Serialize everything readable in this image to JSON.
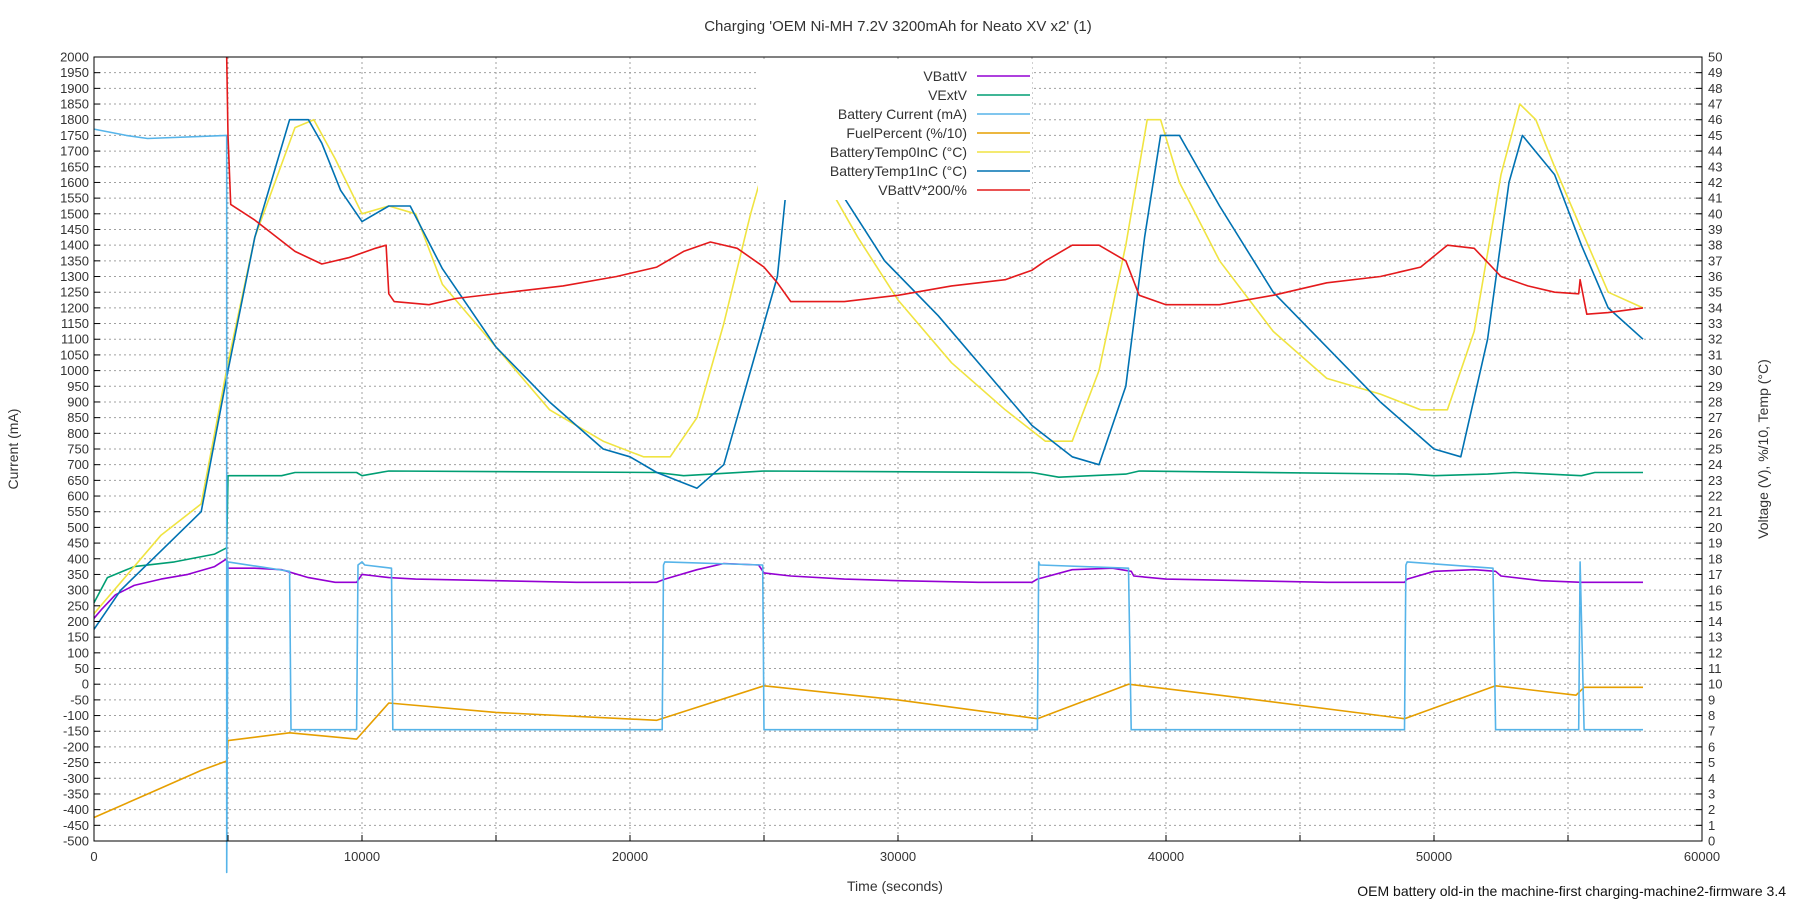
{
  "chart_data": {
    "type": "line",
    "title": "Charging 'OEM Ni-MH 7.2V 3200mAh for Neato XV x2' (1)",
    "xlabel": "Time (seconds)",
    "ylabel": "Current (mA)",
    "y2label": "Voltage (V), %/10, Temp (°C)",
    "footer": "OEM battery old-in the machine-first charging-machine2-firmware 3.4",
    "xlim": [
      0,
      60000
    ],
    "ylim": [
      -500,
      2000
    ],
    "y2lim": [
      0,
      50
    ],
    "x_ticks": [
      0,
      10000,
      20000,
      30000,
      40000,
      50000,
      60000
    ],
    "y_ticks": [
      -500,
      -450,
      -400,
      -350,
      -300,
      -250,
      -200,
      -150,
      -100,
      -50,
      0,
      50,
      100,
      150,
      200,
      250,
      300,
      350,
      400,
      450,
      500,
      550,
      600,
      650,
      700,
      750,
      800,
      850,
      900,
      950,
      1000,
      1050,
      1100,
      1150,
      1200,
      1250,
      1300,
      1350,
      1400,
      1450,
      1500,
      1550,
      1600,
      1650,
      1700,
      1750,
      1800,
      1850,
      1900,
      1950,
      2000
    ],
    "y2_ticks": [
      0,
      1,
      2,
      3,
      4,
      5,
      6,
      7,
      8,
      9,
      10,
      11,
      12,
      13,
      14,
      15,
      16,
      17,
      18,
      19,
      20,
      21,
      22,
      23,
      24,
      25,
      26,
      27,
      28,
      29,
      30,
      31,
      32,
      33,
      34,
      35,
      36,
      37,
      38,
      39,
      40,
      41,
      42,
      43,
      44,
      45,
      46,
      47,
      48,
      49,
      50
    ],
    "grid": true,
    "legend_position": "top-center",
    "series": [
      {
        "name": "VBattV",
        "axis": "y2",
        "color": "#9400d3",
        "x": [
          0,
          300,
          800,
          1500,
          2500,
          3500,
          4500,
          4950,
          5000,
          6000,
          7000,
          8000,
          9000,
          9800,
          10000,
          10500,
          11000,
          12000,
          15000,
          18000,
          21000,
          21300,
          22500,
          23500,
          24800,
          25000,
          26000,
          28000,
          30000,
          33000,
          35000,
          35200,
          36500,
          38000,
          38700,
          38800,
          40000,
          43000,
          46000,
          48900,
          49000,
          50000,
          51500,
          52300,
          52500,
          54000,
          55500,
          56000,
          57800
        ],
        "y": [
          14.2,
          14.8,
          15.7,
          16.3,
          16.7,
          17.0,
          17.5,
          18.0,
          17.4,
          17.4,
          17.3,
          16.8,
          16.5,
          16.5,
          17.0,
          16.9,
          16.8,
          16.7,
          16.6,
          16.5,
          16.5,
          16.7,
          17.3,
          17.7,
          17.6,
          17.1,
          16.9,
          16.7,
          16.6,
          16.5,
          16.5,
          16.7,
          17.3,
          17.4,
          17.2,
          16.9,
          16.7,
          16.6,
          16.5,
          16.5,
          16.7,
          17.2,
          17.3,
          17.2,
          16.9,
          16.6,
          16.5,
          16.5,
          16.5
        ]
      },
      {
        "name": "VExtV",
        "axis": "y2",
        "color": "#009e73",
        "x": [
          0,
          500,
          1500,
          3000,
          4500,
          4950,
          5000,
          7000,
          7500,
          9800,
          10000,
          11000,
          21000,
          22000,
          25000,
          35000,
          36000,
          38500,
          39000,
          49000,
          50000,
          52000,
          53000,
          55500,
          56000,
          57800
        ],
        "y": [
          15.2,
          16.8,
          17.5,
          17.8,
          18.3,
          18.7,
          23.3,
          23.3,
          23.5,
          23.5,
          23.3,
          23.6,
          23.5,
          23.3,
          23.6,
          23.5,
          23.2,
          23.4,
          23.6,
          23.4,
          23.3,
          23.4,
          23.5,
          23.3,
          23.5,
          23.5
        ]
      },
      {
        "name": "Battery Current (mA)",
        "axis": "y",
        "color": "#56b4e9",
        "x": [
          0,
          1200,
          2000,
          4950,
          4951,
          5000,
          7300,
          7350,
          9800,
          9850,
          10000,
          10100,
          11100,
          11150,
          21200,
          21250,
          21300,
          24950,
          25000,
          35200,
          35250,
          35300,
          38600,
          38700,
          48900,
          48950,
          49000,
          52200,
          52300,
          55400,
          55450,
          55600,
          55700,
          57800
        ],
        "y": [
          1770,
          1750,
          1740,
          1750,
          -600,
          390,
          360,
          -145,
          -145,
          380,
          390,
          380,
          370,
          -145,
          -145,
          380,
          390,
          380,
          -145,
          -145,
          390,
          380,
          370,
          -145,
          -145,
          380,
          390,
          370,
          -145,
          -145,
          390,
          -145,
          -145,
          -145
        ]
      },
      {
        "name": "FuelPercent (%/10)",
        "axis": "y2",
        "color": "#e69f00",
        "x": [
          0,
          2000,
          4000,
          4950,
          5000,
          7300,
          9800,
          11000,
          15000,
          21000,
          25000,
          30000,
          35200,
          38600,
          42000,
          48900,
          52300,
          55300,
          55600,
          57800
        ],
        "y": [
          1.5,
          3.0,
          4.5,
          5.1,
          6.4,
          6.9,
          6.5,
          8.8,
          8.2,
          7.7,
          9.9,
          9.0,
          7.8,
          10.0,
          9.3,
          7.8,
          9.9,
          9.3,
          9.8,
          9.8
        ]
      },
      {
        "name": "BatteryTemp0InC (°C)",
        "axis": "y2",
        "color": "#f0e442",
        "x": [
          0,
          1000,
          2500,
          4000,
          5000,
          6000,
          7500,
          8200,
          9000,
          10000,
          11000,
          12000,
          13000,
          15000,
          17000,
          19000,
          20500,
          21500,
          22500,
          23500,
          24500,
          25500,
          26200,
          27000,
          28500,
          30000,
          32000,
          34000,
          35500,
          36500,
          37500,
          38500,
          39300,
          39800,
          40500,
          42000,
          44000,
          46000,
          48000,
          49500,
          50500,
          51500,
          52500,
          53200,
          53800,
          54500,
          55500,
          56500,
          57800
        ],
        "y": [
          14.5,
          16.5,
          19.5,
          21.5,
          30.5,
          38.5,
          45.5,
          46,
          43.5,
          40,
          40.5,
          40,
          35.5,
          31.5,
          27.5,
          25.5,
          24.5,
          24.5,
          27,
          33,
          40,
          46,
          46,
          43,
          38.5,
          34.5,
          30.5,
          27.5,
          25.5,
          25.5,
          30,
          38,
          46,
          46,
          42,
          37,
          32.5,
          29.5,
          28.5,
          27.5,
          27.5,
          32.5,
          42.5,
          47,
          46,
          43,
          39,
          35,
          34
        ]
      },
      {
        "name": "BatteryTemp1InC (°C)",
        "axis": "y2",
        "color": "#0072b2",
        "x": [
          0,
          1000,
          2500,
          4000,
          5000,
          6000,
          7300,
          8000,
          8500,
          9200,
          10000,
          11000,
          11800,
          13000,
          15000,
          17000,
          19000,
          20000,
          21000,
          22500,
          23500,
          24500,
          25500,
          26000,
          26800,
          28000,
          29500,
          31500,
          33500,
          35000,
          36500,
          37500,
          38500,
          39200,
          39800,
          40500,
          42000,
          44000,
          46000,
          48000,
          49000,
          50000,
          51000,
          52000,
          52800,
          53300,
          54500,
          55500,
          56500,
          57800
        ],
        "y": [
          13.5,
          16,
          18.5,
          21,
          30,
          38.5,
          46,
          46,
          44.5,
          41.5,
          39.5,
          40.5,
          40.5,
          36.5,
          31.5,
          28,
          25,
          24.5,
          23.5,
          22.5,
          24,
          30,
          36,
          44.5,
          44.5,
          41,
          37,
          33.5,
          29.5,
          26.5,
          24.5,
          24,
          29,
          38.5,
          45,
          45,
          40.5,
          35,
          31.5,
          28,
          26.5,
          25,
          24.5,
          32,
          42,
          45,
          42.5,
          38,
          34,
          32
        ]
      },
      {
        "name": "VBattV*200/%",
        "axis": "y",
        "color": "#e41a1c",
        "x": [
          4950,
          5000,
          5100,
          6000,
          7500,
          8500,
          9500,
          10500,
          10900,
          11000,
          11200,
          12500,
          13500,
          15500,
          17500,
          19500,
          21000,
          22000,
          23000,
          24000,
          25000,
          25500,
          26000,
          28000,
          30000,
          32000,
          34000,
          35000,
          35500,
          36500,
          37500,
          38500,
          39000,
          40000,
          42000,
          44000,
          46000,
          48000,
          49500,
          50500,
          51500,
          52500,
          53500,
          54500,
          55400,
          55450,
          55700,
          56500,
          57800
        ],
        "y": [
          2000,
          1750,
          1530,
          1480,
          1380,
          1340,
          1360,
          1390,
          1400,
          1245,
          1220,
          1210,
          1230,
          1250,
          1270,
          1300,
          1330,
          1380,
          1410,
          1390,
          1330,
          1280,
          1220,
          1220,
          1240,
          1270,
          1290,
          1320,
          1350,
          1400,
          1400,
          1350,
          1240,
          1210,
          1210,
          1240,
          1280,
          1300,
          1330,
          1400,
          1390,
          1300,
          1270,
          1250,
          1245,
          1290,
          1180,
          1185,
          1200
        ]
      }
    ]
  }
}
